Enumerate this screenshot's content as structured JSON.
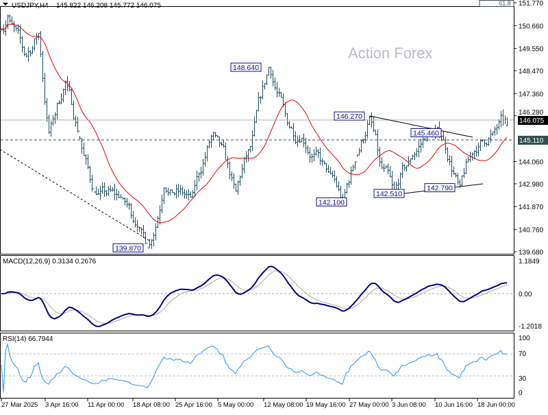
{
  "header": {
    "symbol": "USDJPY,H4",
    "ohlc": "145.822 146.208 145.772 146.075"
  },
  "watermark": "Action Forex",
  "fib_label": "61.8",
  "colors": {
    "bars": "#1d4a5c",
    "moving_average": "#e00000",
    "macd": "#000080",
    "signal": "#a8a8a8",
    "rsi": "#1e90ff",
    "level_box": "#2f4f4f"
  },
  "chart_data": [
    {
      "type": "ohlc",
      "title": "USDJPY,H4",
      "last": {
        "open": 145.822,
        "high": 146.208,
        "low": 145.772,
        "close": 146.075
      },
      "ylim": [
        139.68,
        151.77
      ],
      "y_ticks": [
        "151.770",
        "150.660",
        "149.550",
        "148.470",
        "147.360",
        "146.280",
        "144.060",
        "142.980",
        "141.870",
        "140.760",
        "139.680"
      ],
      "x_ticks": [
        "27 Mar 2025",
        "3 Apr 16:00",
        "11 Apr 00:00",
        "18 Apr 08:00",
        "25 Apr 16:00",
        "5 May 00:00",
        "12 May 08:00",
        "19 May 16:00",
        "27 May 00:00",
        "3 Jun 08:00",
        "10 Jun 16:00",
        "18 Jun 00:00"
      ],
      "price_path": [
        [
          "2025-03-27 00:00",
          150.5
        ],
        [
          "2025-03-28 00:00",
          151.2
        ],
        [
          "2025-03-31 04:00",
          149.1
        ],
        [
          "2025-04-02 12:00",
          150.3
        ],
        [
          "2025-04-04 04:00",
          145.4
        ],
        [
          "2025-04-07 04:00",
          148.0
        ],
        [
          "2025-04-09 12:00",
          145.3
        ],
        [
          "2025-04-11 20:00",
          142.6
        ],
        [
          "2025-04-16 12:00",
          142.3
        ],
        [
          "2025-04-19 08:00",
          140.9
        ],
        [
          "2025-04-21 00:00",
          139.87
        ],
        [
          "2025-04-23 16:00",
          142.8
        ],
        [
          "2025-04-29 04:00",
          142.3
        ],
        [
          "2025-05-03 20:00",
          145.5
        ],
        [
          "2025-05-07 20:00",
          142.6
        ],
        [
          "2025-05-10 04:00",
          144.8
        ],
        [
          "2025-05-13 04:00",
          148.64
        ],
        [
          "2025-05-16 12:00",
          145.8
        ],
        [
          "2025-05-18 20:00",
          145.2
        ],
        [
          "2025-05-23 12:00",
          143.5
        ],
        [
          "2025-05-25 20:00",
          142.1
        ],
        [
          "2025-05-28 04:00",
          144.3
        ],
        [
          "2025-05-30 12:00",
          146.27
        ],
        [
          "2025-06-01 08:00",
          143.8
        ],
        [
          "2025-06-03 16:00",
          142.51
        ],
        [
          "2025-06-06 12:00",
          144.2
        ],
        [
          "2025-06-09 12:00",
          145.46
        ],
        [
          "2025-06-11 20:00",
          145.3
        ],
        [
          "2025-06-14 20:00",
          142.79
        ],
        [
          "2025-06-17 04:00",
          144.5
        ],
        [
          "2025-06-20 16:00",
          145.5
        ],
        [
          "2025-06-23 04:00",
          146.075
        ]
      ],
      "annotations": [
        {
          "text": "148.640",
          "price": 148.64
        },
        {
          "text": "146.270",
          "price": 146.27
        },
        {
          "text": "145.460",
          "price": 145.46
        },
        {
          "text": "142.790",
          "price": 142.79
        },
        {
          "text": "142.510",
          "price": 142.51
        },
        {
          "text": "142.100",
          "price": 142.1
        },
        {
          "text": "139.870",
          "price": 139.87
        }
      ],
      "current_price": "146.075",
      "horizontal_level": "145.110",
      "moving_average": "red line"
    },
    {
      "type": "line",
      "title": "MACD(12,26,9) 0.3134 0.2676",
      "y_ticks": [
        "1.1849",
        "0.00",
        "-1.2018"
      ],
      "ylim": [
        -1.2018,
        1.1849
      ],
      "series": [
        {
          "name": "MACD",
          "last": 0.3134
        },
        {
          "name": "Signal",
          "last": 0.2676
        }
      ]
    },
    {
      "type": "line",
      "title": "RSI(14) 66.7944",
      "y_ticks": [
        "100",
        "70",
        "30",
        "0"
      ],
      "ylim": [
        0,
        100
      ],
      "levels": [
        70,
        30
      ],
      "last": 66.7944
    }
  ]
}
